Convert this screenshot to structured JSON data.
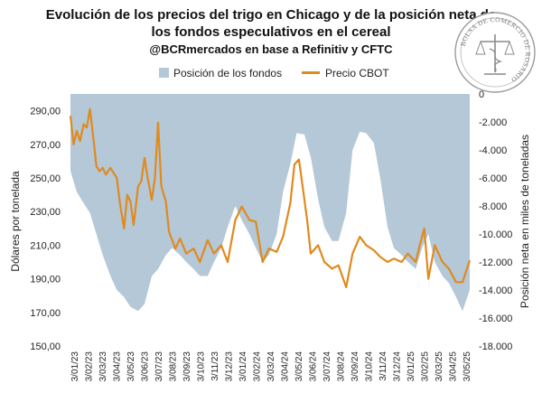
{
  "chart_data": {
    "type": "line",
    "title": [
      "Evolución de los precios del trigo en Chicago y de la posición neta de",
      "los fondos especulativos en el cereal"
    ],
    "subtitle": "@BCRmercados en base a Refinitiv y CFTC",
    "ylabel_left": "Dólares por tonelada",
    "ylabel_right": "Posición neta en miles de toneladas",
    "ylim_left": [
      150,
      300
    ],
    "ylim_right": [
      -18000,
      0
    ],
    "yticks_left": [
      "150,00",
      "170,00",
      "190,00",
      "210,00",
      "230,00",
      "250,00",
      "270,00",
      "290,00"
    ],
    "yticks_right": [
      "-18.000",
      "-16.000",
      "-14.000",
      "-12.000",
      "-10.000",
      "-8.000",
      "-6.000",
      "-4.000",
      "-2.000",
      "0"
    ],
    "xticks": [
      "3/01/23",
      "3/02/23",
      "3/03/23",
      "3/04/23",
      "3/05/23",
      "3/06/23",
      "3/07/23",
      "3/08/23",
      "3/09/23",
      "3/10/23",
      "3/11/23",
      "3/12/23",
      "3/01/24",
      "3/02/24",
      "3/03/24",
      "3/04/24",
      "3/05/24",
      "3/06/24",
      "3/07/24",
      "3/08/24",
      "3/09/24",
      "3/10/24",
      "3/11/24",
      "3/12/24",
      "3/01/25",
      "3/02/25",
      "3/03/25",
      "3/04/25",
      "3/05/25"
    ],
    "legend": {
      "position": "top",
      "entries": [
        "Posición de los fondos",
        "Precio CBOT"
      ]
    },
    "grid": false,
    "series": [
      {
        "name": "Posición de los fondos",
        "kind": "area",
        "axis": "right",
        "color": "#b4c8d8",
        "x": [
          "2023-01-03",
          "2023-01-17",
          "2023-02-01",
          "2023-02-15",
          "2023-03-01",
          "2023-03-15",
          "2023-04-01",
          "2023-04-15",
          "2023-05-01",
          "2023-05-15",
          "2023-06-01",
          "2023-06-15",
          "2023-07-01",
          "2023-07-15",
          "2023-08-01",
          "2023-08-15",
          "2023-09-01",
          "2023-09-15",
          "2023-10-01",
          "2023-10-15",
          "2023-11-01",
          "2023-11-15",
          "2023-12-01",
          "2023-12-15",
          "2024-01-01",
          "2024-01-15",
          "2024-02-01",
          "2024-02-15",
          "2024-03-01",
          "2024-03-15",
          "2024-04-01",
          "2024-04-15",
          "2024-05-01",
          "2024-05-15",
          "2024-06-01",
          "2024-06-15",
          "2024-07-01",
          "2024-07-15",
          "2024-08-01",
          "2024-08-15",
          "2024-09-01",
          "2024-09-15",
          "2024-10-01",
          "2024-10-15",
          "2024-11-01",
          "2024-11-15",
          "2024-12-01",
          "2024-12-15",
          "2025-01-01",
          "2025-01-15",
          "2025-02-01",
          "2025-02-15",
          "2025-03-01",
          "2025-03-15",
          "2025-04-01",
          "2025-04-15",
          "2025-05-01",
          "2025-05-15",
          "2025-05-31"
        ],
        "values": [
          -5500,
          -7000,
          -7800,
          -8500,
          -10000,
          -11500,
          -13000,
          -14000,
          -14500,
          -15200,
          -15500,
          -15000,
          -13000,
          -12500,
          -11500,
          -11000,
          -11500,
          -12000,
          -12500,
          -13000,
          -13000,
          -12000,
          -11000,
          -9500,
          -8000,
          -9000,
          -10000,
          -11000,
          -12000,
          -11500,
          -10000,
          -7000,
          -5000,
          -2800,
          -2900,
          -4500,
          -7500,
          -9500,
          -10500,
          -10500,
          -8500,
          -4000,
          -2700,
          -2800,
          -3500,
          -6000,
          -9500,
          -11000,
          -11500,
          -12000,
          -12500,
          -11000,
          -10000,
          -12000,
          -13000,
          -13500,
          -14500,
          -15500,
          -14000
        ]
      },
      {
        "name": "Precio CBOT",
        "kind": "line",
        "axis": "left",
        "color": "#e08a1e",
        "x": [
          "2023-01-03",
          "2023-01-10",
          "2023-01-17",
          "2023-01-24",
          "2023-02-01",
          "2023-02-08",
          "2023-02-15",
          "2023-02-22",
          "2023-03-01",
          "2023-03-08",
          "2023-03-15",
          "2023-03-22",
          "2023-04-01",
          "2023-04-08",
          "2023-04-15",
          "2023-04-22",
          "2023-05-01",
          "2023-05-08",
          "2023-05-15",
          "2023-05-22",
          "2023-06-01",
          "2023-06-08",
          "2023-06-15",
          "2023-06-22",
          "2023-07-01",
          "2023-07-08",
          "2023-07-15",
          "2023-07-22",
          "2023-08-01",
          "2023-08-08",
          "2023-08-15",
          "2023-08-22",
          "2023-09-01",
          "2023-09-15",
          "2023-10-01",
          "2023-10-15",
          "2023-11-01",
          "2023-11-15",
          "2023-12-01",
          "2023-12-15",
          "2024-01-01",
          "2024-01-15",
          "2024-02-01",
          "2024-02-15",
          "2024-03-01",
          "2024-03-15",
          "2024-04-01",
          "2024-04-15",
          "2024-05-01",
          "2024-05-10",
          "2024-05-20",
          "2024-05-28",
          "2024-06-07",
          "2024-06-15",
          "2024-07-01",
          "2024-07-15",
          "2024-08-01",
          "2024-08-15",
          "2024-09-01",
          "2024-09-15",
          "2024-10-01",
          "2024-10-15",
          "2024-11-01",
          "2024-11-15",
          "2024-12-01",
          "2024-12-15",
          "2025-01-01",
          "2025-01-15",
          "2025-02-01",
          "2025-02-10",
          "2025-02-20",
          "2025-03-01",
          "2025-03-15",
          "2025-04-01",
          "2025-04-15",
          "2025-05-01",
          "2025-05-15",
          "2025-05-31"
        ],
        "values": [
          287,
          270,
          278,
          272,
          282,
          280,
          291,
          275,
          257,
          254,
          256,
          252,
          256,
          253,
          250,
          235,
          220,
          240,
          236,
          222,
          245,
          248,
          262,
          250,
          237,
          250,
          283,
          245,
          236,
          218,
          213,
          208,
          214,
          205,
          208,
          200,
          213,
          205,
          210,
          200,
          225,
          233,
          225,
          224,
          200,
          208,
          206,
          215,
          235,
          258,
          261,
          245,
          225,
          205,
          210,
          200,
          196,
          198,
          185,
          205,
          215,
          210,
          207,
          203,
          200,
          202,
          200,
          205,
          200,
          210,
          220,
          190,
          210,
          200,
          196,
          188,
          188,
          201
        ]
      }
    ]
  }
}
